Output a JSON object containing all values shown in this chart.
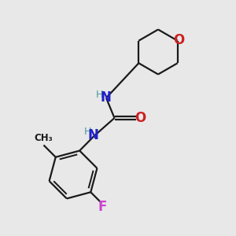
{
  "background_color": "#e8e8e8",
  "bond_color": "#1a1a1a",
  "nitrogen_color": "#2020cc",
  "nitrogen_H_color": "#4a9a9a",
  "oxygen_color": "#cc2020",
  "fluorine_color": "#cc44cc",
  "methyl_color": "#1a1a1a",
  "bond_width": 1.6,
  "figsize": [
    3.0,
    3.0
  ],
  "dpi": 100,
  "xlim": [
    0,
    10
  ],
  "ylim": [
    0,
    10
  ]
}
